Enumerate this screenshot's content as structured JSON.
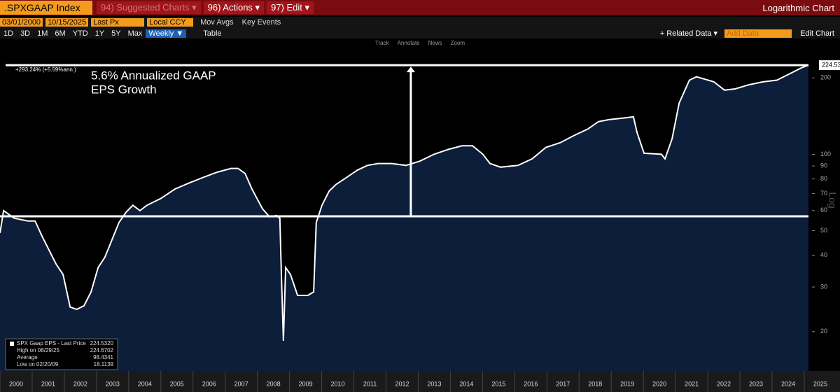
{
  "toolbar": {
    "ticker": ".SPXGAAP Index",
    "menus": [
      "94) Suggested Charts ▾",
      "96) Actions ▾",
      "97) Edit ▾"
    ],
    "chart_mode": "Logarithmic Chart",
    "start_date": "03/01/2000",
    "end_date": "10/15/2025",
    "price_field": "Last Px",
    "currency": "Local CCY",
    "options": [
      "Mov Avgs",
      "Key Events"
    ],
    "ranges": [
      "1D",
      "3D",
      "1M",
      "6M",
      "YTD",
      "1Y",
      "5Y",
      "Max"
    ],
    "frequency": "Weekly ▼",
    "table": "Table",
    "related": "+ Related Data ▾",
    "add_data": "Add Data",
    "edit_chart": "Edit Chart",
    "tools": [
      "Track",
      "Annotate",
      "News",
      "Zoom"
    ]
  },
  "chart_data": {
    "type": "area",
    "x": [
      2000.0,
      2000.11,
      2000.44,
      2000.87,
      2001.09,
      2001.31,
      2001.74,
      2001.96,
      2002.18,
      2002.39,
      2002.61,
      2002.83,
      2003.05,
      2003.26,
      2003.48,
      2003.7,
      2003.92,
      2004.13,
      2004.35,
      2004.57,
      2005.0,
      2005.44,
      2005.87,
      2006.31,
      2006.75,
      2007.18,
      2007.4,
      2007.62,
      2007.83,
      2008.16,
      2008.38,
      2008.59,
      2008.7,
      2008.75,
      2008.81,
      2008.88,
      2009.03,
      2009.25,
      2009.57,
      2009.75,
      2009.83,
      2010.01,
      2010.23,
      2010.44,
      2010.77,
      2011.1,
      2011.42,
      2011.75,
      2012.18,
      2012.62,
      2013.05,
      2013.49,
      2013.93,
      2014.36,
      2014.69,
      2015.01,
      2015.23,
      2015.56,
      2016.1,
      2016.54,
      2016.97,
      2017.41,
      2017.84,
      2018.28,
      2018.6,
      2018.93,
      2019.36,
      2019.69,
      2019.8,
      2020.02,
      2020.56,
      2020.67,
      2020.89,
      2021.11,
      2021.43,
      2021.65,
      2022.19,
      2022.52,
      2022.85,
      2023.28,
      2023.72,
      2024.15,
      2024.59,
      2024.91,
      2025.13
    ],
    "series": [
      {
        "name": "SPX Gaap EPS - Last Price",
        "color": "#ffffff",
        "fill": "#0c1e3a",
        "values": [
          49,
          60,
          56,
          54.6,
          54.6,
          47.5,
          37,
          33.6,
          25,
          24.5,
          25.3,
          28.7,
          35.8,
          39.3,
          46,
          53.9,
          59.2,
          63,
          60,
          63,
          67,
          73,
          77,
          81,
          85,
          88,
          88,
          84,
          73,
          61,
          56.7,
          57.4,
          56,
          32.5,
          18.4,
          35.8,
          33.6,
          27.8,
          27.8,
          28.7,
          53.9,
          63,
          71.6,
          76,
          81,
          86.5,
          90.4,
          92,
          92,
          90.4,
          94,
          100,
          104.5,
          108,
          108,
          100,
          92,
          89,
          90.4,
          96,
          106.5,
          111,
          118.6,
          126,
          134.5,
          137,
          138.8,
          140.5,
          122,
          101,
          100,
          96,
          115,
          159,
          196,
          202,
          193,
          179,
          181,
          188,
          193,
          196,
          209,
          219,
          224.532
        ]
      }
    ],
    "log_scale": true,
    "ylim": [
      14,
      260
    ],
    "yticks": [
      20,
      30,
      40,
      50,
      60,
      70,
      80,
      90,
      100,
      200
    ],
    "xlim": [
      2000,
      2025.24
    ],
    "xticks": [
      2000,
      2001,
      2002,
      2003,
      2004,
      2005,
      2006,
      2007,
      2008,
      2009,
      2010,
      2011,
      2012,
      2013,
      2014,
      2015,
      2016,
      2017,
      2018,
      2019,
      2020,
      2021,
      2022,
      2023,
      2024,
      2025
    ],
    "y_axis_label": "Log",
    "annotation": {
      "label": "+293.24% (+5.59%ann.)",
      "text": [
        "5.6% Annualized GAAP",
        "EPS Growth"
      ],
      "from": 57,
      "to": 224.532,
      "x": 2012.77
    },
    "last_tag": {
      "value": 224.532,
      "label": "224.53"
    },
    "legend": [
      {
        "label": "SPX Gaap EPS - Last Price",
        "value": "224.5320"
      },
      {
        "label": "High on 08/29/25",
        "value": "224.6702"
      },
      {
        "label": "Average",
        "value": "98.4341"
      },
      {
        "label": "Low on 02/20/09",
        "value": "18.1139"
      }
    ]
  }
}
